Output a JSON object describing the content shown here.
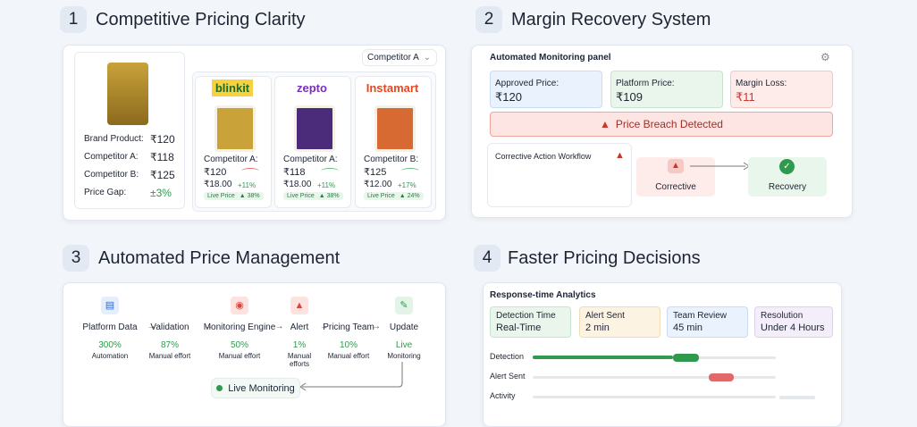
{
  "sections": [
    {
      "number": "1",
      "title": "Competitive Pricing Clarity",
      "dropdown": "Competitor A",
      "brand_rows": [
        {
          "label": "Brand Product:",
          "value": "₹120"
        },
        {
          "label": "Competitor A:",
          "value": "₹118"
        },
        {
          "label": "Competitor B:",
          "value": "₹125"
        },
        {
          "label": "Price Gap:",
          "value": "±3%"
        }
      ],
      "products": [
        {
          "retailer": "blinkit",
          "label": "Competitor A:",
          "price": "₹120",
          "unit": "₹18.00",
          "change": "+11%",
          "badge": "Live Price",
          "badge_change": "▲ 38%"
        },
        {
          "retailer": "zepto",
          "label": "Competitor A:",
          "price": "₹118",
          "unit": "₹18.00",
          "change": "+11%",
          "badge": "Live Price",
          "badge_change": "▲ 38%"
        },
        {
          "retailer": "Instamart",
          "label": "Competitor B:",
          "price": "₹125",
          "unit": "₹12.00",
          "change": "+17%",
          "badge": "Live Price",
          "badge_change": "▲ 24%"
        }
      ]
    },
    {
      "number": "2",
      "title": "Margin Recovery System",
      "panel_title": "Automated Monitoring panel",
      "boxes": [
        {
          "label": "Approved Price:",
          "value": "₹120"
        },
        {
          "label": "Platform Price:",
          "value": "₹109"
        },
        {
          "label": "Margin Loss:",
          "value": "₹11"
        }
      ],
      "banner": "Price Breach Detected",
      "workflow_title": "Corrective Action Workflow",
      "steps": [
        "Corrective",
        "Recovery"
      ]
    },
    {
      "number": "3",
      "title": "Automated Price Management",
      "flow": [
        {
          "label": "Platform Data",
          "stat": "300%",
          "note": "Automation"
        },
        {
          "label": "Validation",
          "stat": "87%",
          "note": "Manual effort"
        },
        {
          "label": "Monitoring Engine",
          "stat": "50%",
          "note": "Manual effort"
        },
        {
          "label": "Alert",
          "stat": "1%",
          "note": "Manual efforts"
        },
        {
          "label": "Pricing Team",
          "stat": "10%",
          "note": "Manual effort"
        },
        {
          "label": "Update",
          "stat": "Live",
          "note": "Monitoring"
        }
      ],
      "pill": "Live Monitoring"
    },
    {
      "number": "4",
      "title": "Faster Pricing Decisions",
      "panel_title": "Response-time Analytics",
      "cards": [
        {
          "label": "Detection Time",
          "value": "Real-Time"
        },
        {
          "label": "Alert Sent",
          "value": "2 min"
        },
        {
          "label": "Team Review",
          "value": "45 min"
        },
        {
          "label": "Resolution",
          "value": "Under 4 Hours"
        }
      ],
      "rows": [
        "Detection",
        "Alert Sent",
        "Activity"
      ]
    }
  ]
}
